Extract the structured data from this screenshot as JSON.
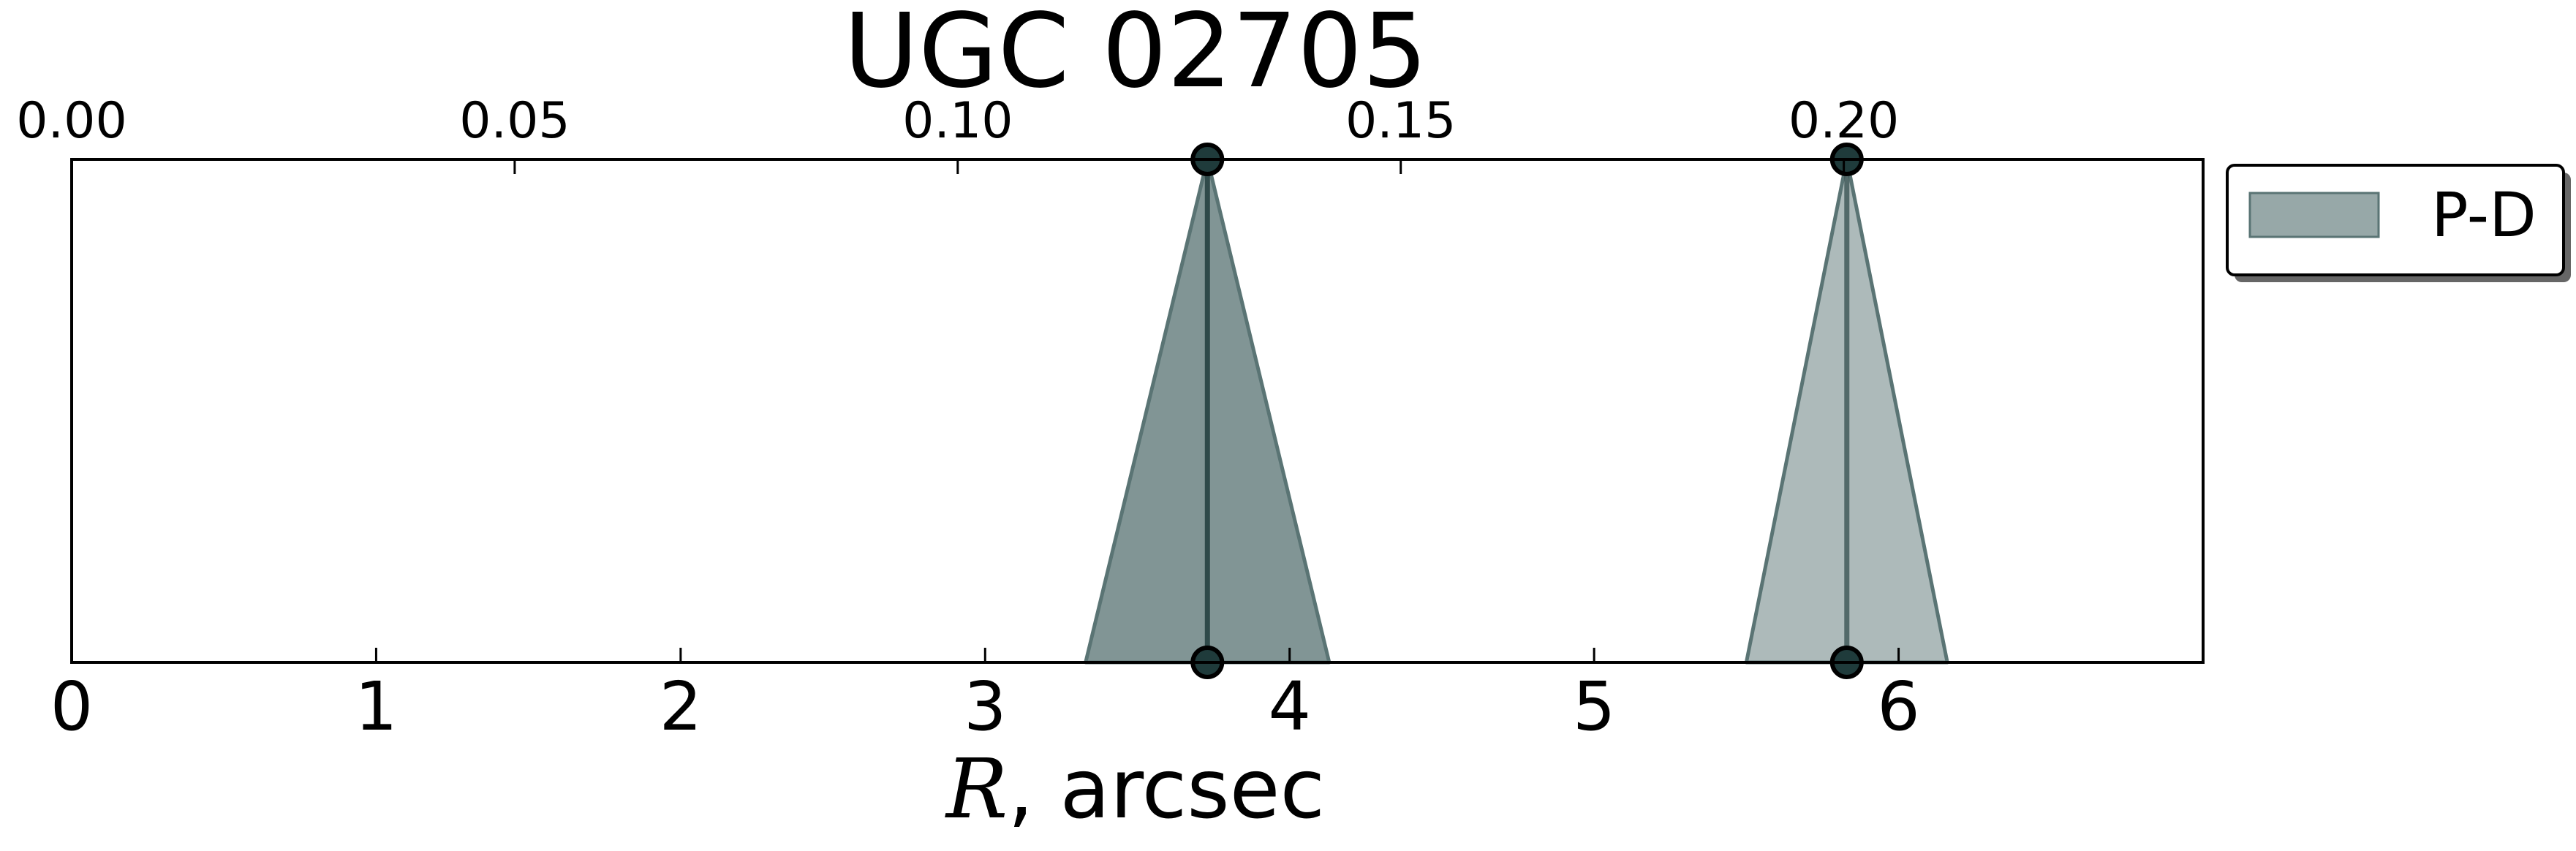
{
  "chart_data": {
    "type": "area",
    "title": "UGC 02705",
    "xlabel": "R",
    "xlabel_unit": ", arcsec",
    "xlim": [
      0,
      7.0
    ],
    "ylim": [
      0,
      1
    ],
    "x_ticks": [
      0,
      1,
      2,
      3,
      4,
      5,
      6
    ],
    "x_tick_labels": [
      "0",
      "1",
      "2",
      "3",
      "4",
      "5",
      "6"
    ],
    "top_axis": {
      "ticks": [
        0.0,
        0.05,
        0.1,
        0.15,
        0.2
      ],
      "tick_labels": [
        "0.00",
        "0.05",
        "0.10",
        "0.15",
        "0.20"
      ],
      "arcsec_per_unit": 29.1
    },
    "y_ticks_visible": false,
    "grid": false,
    "legend": {
      "placement": "outside-top-right",
      "entries": [
        "P-D"
      ]
    },
    "series": [
      {
        "name": "P-D",
        "color": "#7a8f8f",
        "peaks": [
          {
            "x": 3.73,
            "x_left": 3.33,
            "x_right": 4.13,
            "opacity": 0.95
          },
          {
            "x": 5.83,
            "x_left": 5.5,
            "x_right": 6.16,
            "opacity": 0.62
          }
        ]
      }
    ]
  },
  "colors": {
    "fill": "#7a8f8f",
    "edge": "#5a7474",
    "line": "#2f4a4a",
    "legend_swatch": "#97a8a8"
  }
}
